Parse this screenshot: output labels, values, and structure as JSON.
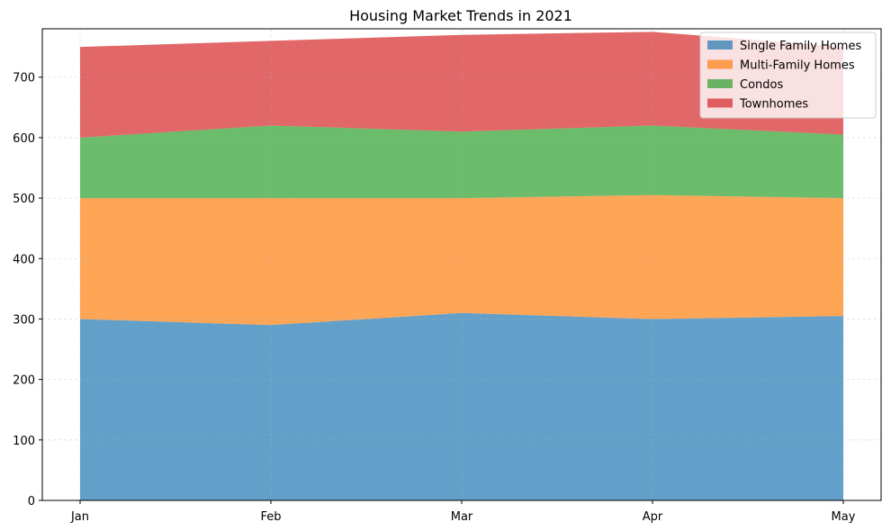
{
  "chart_data": {
    "type": "area",
    "stacked": true,
    "title": "Housing Market Trends in 2021",
    "xlabel": "",
    "ylabel": "",
    "categories": [
      "Jan",
      "Feb",
      "Mar",
      "Apr",
      "May"
    ],
    "ylim": [
      0,
      780
    ],
    "yticks": [
      0,
      100,
      200,
      300,
      400,
      500,
      600,
      700
    ],
    "grid": true,
    "legend_position": "top-right",
    "series": [
      {
        "name": "Single Family Homes",
        "values": [
          300,
          290,
          310,
          300,
          305
        ],
        "color": "#1f77b4"
      },
      {
        "name": "Multi-Family Homes",
        "values": [
          200,
          210,
          190,
          205,
          195
        ],
        "color": "#ff7f0e"
      },
      {
        "name": "Condos",
        "values": [
          100,
          120,
          110,
          115,
          105
        ],
        "color": "#2ca02c"
      },
      {
        "name": "Townhomes",
        "values": [
          150,
          140,
          160,
          155,
          145
        ],
        "color": "#d62728"
      }
    ]
  }
}
